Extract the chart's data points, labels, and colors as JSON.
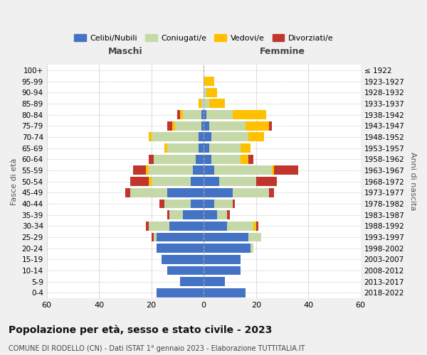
{
  "age_groups": [
    "0-4",
    "5-9",
    "10-14",
    "15-19",
    "20-24",
    "25-29",
    "30-34",
    "35-39",
    "40-44",
    "45-49",
    "50-54",
    "55-59",
    "60-64",
    "65-69",
    "70-74",
    "75-79",
    "80-84",
    "85-89",
    "90-94",
    "95-99",
    "100+"
  ],
  "birth_years": [
    "2018-2022",
    "2013-2017",
    "2008-2012",
    "2003-2007",
    "1998-2002",
    "1993-1997",
    "1988-1992",
    "1983-1987",
    "1978-1982",
    "1973-1977",
    "1968-1972",
    "1963-1967",
    "1958-1962",
    "1953-1957",
    "1948-1952",
    "1943-1947",
    "1938-1942",
    "1933-1937",
    "1928-1932",
    "1923-1927",
    "≤ 1922"
  ],
  "male_celibi": [
    18,
    9,
    14,
    16,
    18,
    18,
    13,
    8,
    5,
    14,
    5,
    4,
    3,
    2,
    2,
    1,
    1,
    0,
    0,
    0,
    0
  ],
  "male_coniugati": [
    0,
    0,
    0,
    0,
    0,
    1,
    8,
    5,
    10,
    14,
    15,
    17,
    16,
    12,
    18,
    10,
    7,
    1,
    0,
    0,
    0
  ],
  "male_vedovi": [
    0,
    0,
    0,
    0,
    0,
    0,
    0,
    0,
    0,
    0,
    1,
    1,
    0,
    1,
    1,
    1,
    1,
    1,
    0,
    0,
    0
  ],
  "male_divorziati": [
    0,
    0,
    0,
    0,
    0,
    1,
    1,
    1,
    2,
    2,
    7,
    5,
    2,
    0,
    0,
    2,
    1,
    0,
    0,
    0,
    0
  ],
  "female_celibi": [
    16,
    8,
    14,
    14,
    18,
    17,
    9,
    5,
    4,
    11,
    6,
    4,
    3,
    2,
    3,
    2,
    1,
    0,
    0,
    0,
    0
  ],
  "female_coniugati": [
    0,
    0,
    0,
    0,
    1,
    5,
    10,
    4,
    7,
    14,
    14,
    22,
    11,
    12,
    14,
    14,
    10,
    2,
    1,
    0,
    0
  ],
  "female_vedovi": [
    0,
    0,
    0,
    0,
    0,
    0,
    1,
    0,
    0,
    0,
    0,
    1,
    3,
    4,
    6,
    9,
    13,
    6,
    4,
    4,
    0
  ],
  "female_divorziati": [
    0,
    0,
    0,
    0,
    0,
    0,
    1,
    1,
    1,
    2,
    8,
    9,
    2,
    0,
    0,
    1,
    0,
    0,
    0,
    0,
    0
  ],
  "colors": {
    "celibi": "#4472c4",
    "coniugati": "#c5d9a8",
    "vedovi": "#ffc000",
    "divorziati": "#c0362c"
  },
  "legend_labels": [
    "Celibi/Nubili",
    "Coniugati/e",
    "Vedovi/e",
    "Divorziati/e"
  ],
  "title": "Popolazione per età, sesso e stato civile - 2023",
  "subtitle": "COMUNE DI RODELLO (CN) - Dati ISTAT 1° gennaio 2023 - Elaborazione TUTTITALIA.IT",
  "xlabel_left": "Maschi",
  "xlabel_right": "Femmine",
  "ylabel_left": "Fasce di età",
  "ylabel_right": "Anni di nascita",
  "xlim": 60,
  "bg_color": "#f0f0f0",
  "plot_bg": "#ffffff",
  "grid_color": "#cccccc"
}
